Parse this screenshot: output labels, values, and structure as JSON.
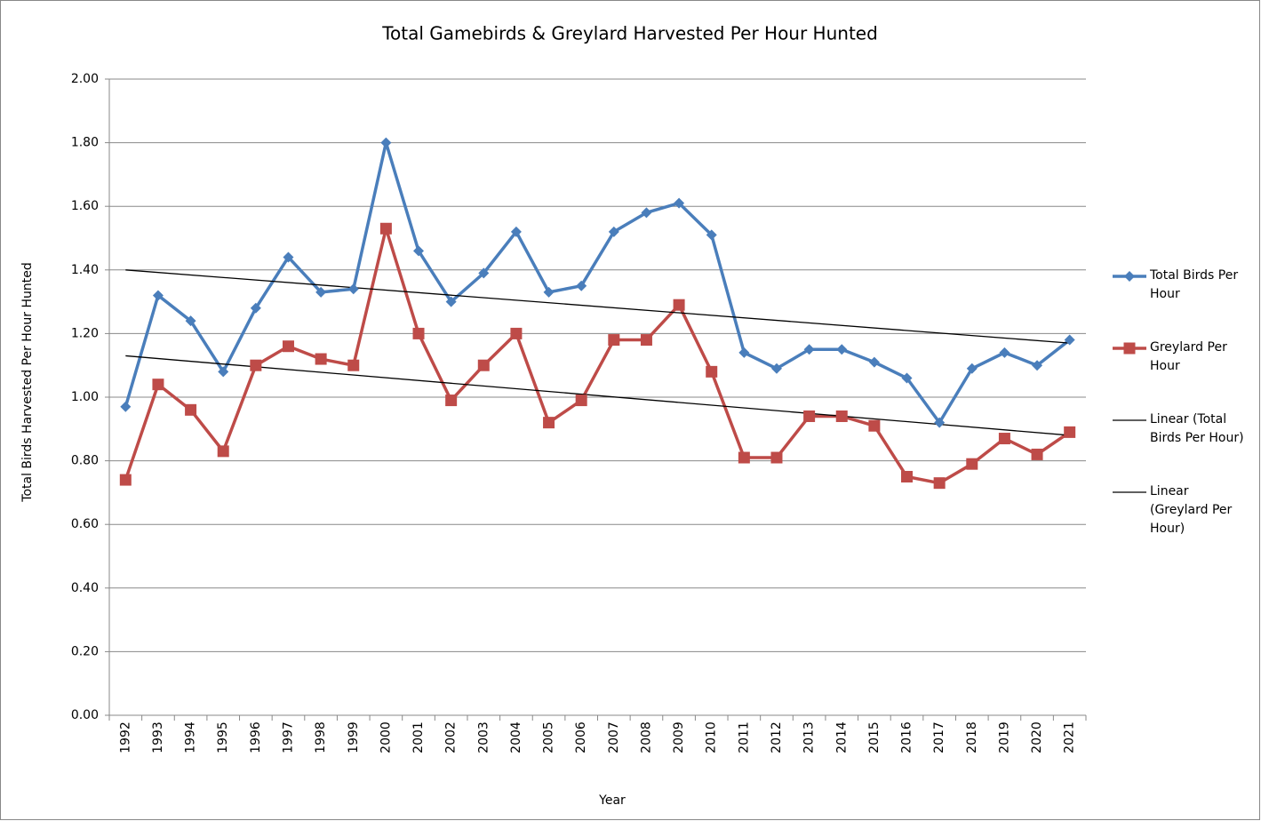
{
  "chart_data": {
    "type": "line",
    "title": "Total Gamebirds & Greylard Harvested Per Hour Hunted",
    "x_label": "Year",
    "y_label": "Total Birds Harvested Per Hour Hunted",
    "categories": [
      "1992",
      "1993",
      "1994",
      "1995",
      "1996",
      "1997",
      "1998",
      "1999",
      "2000",
      "2001",
      "2002",
      "2003",
      "2004",
      "2005",
      "2006",
      "2007",
      "2008",
      "2009",
      "2010",
      "2011",
      "2012",
      "2013",
      "2014",
      "2015",
      "2016",
      "2017",
      "2018",
      "2019",
      "2020",
      "2021"
    ],
    "series": [
      {
        "name": "Total Birds Per Hour",
        "color": "#4a7ebb",
        "marker": "diamond",
        "values": [
          0.97,
          1.32,
          1.24,
          1.08,
          1.28,
          1.44,
          1.33,
          1.34,
          1.8,
          1.46,
          1.3,
          1.39,
          1.52,
          1.33,
          1.35,
          1.52,
          1.58,
          1.61,
          1.51,
          1.14,
          1.09,
          1.15,
          1.15,
          1.11,
          1.06,
          0.92,
          1.09,
          1.14,
          1.1,
          1.18
        ]
      },
      {
        "name": "Greylard Per Hour",
        "color": "#be4b48",
        "marker": "square",
        "values": [
          0.74,
          1.04,
          0.96,
          0.83,
          1.1,
          1.16,
          1.12,
          1.1,
          1.53,
          1.2,
          0.99,
          1.1,
          1.2,
          0.92,
          0.99,
          1.18,
          1.18,
          1.29,
          1.08,
          0.81,
          0.81,
          0.94,
          0.94,
          0.91,
          0.75,
          0.73,
          0.79,
          0.87,
          0.82,
          0.89
        ]
      }
    ],
    "trendlines": [
      {
        "name": "Linear (Total Birds Per Hour)",
        "color": "#000000",
        "x": [
          "1992",
          "2021"
        ],
        "values": [
          1.4,
          1.17
        ]
      },
      {
        "name": "Linear (Greylard Per Hour)",
        "color": "#000000",
        "x": [
          "1992",
          "2021"
        ],
        "values": [
          1.13,
          0.88
        ]
      }
    ],
    "ylim": [
      0,
      2
    ],
    "yticks": [
      {
        "value": 0,
        "label": "0.00"
      },
      {
        "value": 0.2,
        "label": "0.20"
      },
      {
        "value": 0.4,
        "label": "0.40"
      },
      {
        "value": 0.6,
        "label": "0.60"
      },
      {
        "value": 0.8,
        "label": "0.80"
      },
      {
        "value": 1,
        "label": "1.00"
      },
      {
        "value": 1.2,
        "label": "1.20"
      },
      {
        "value": 1.4,
        "label": "1.40"
      },
      {
        "value": 1.6,
        "label": "1.60"
      },
      {
        "value": 1.8,
        "label": "1.80"
      },
      {
        "value": 2,
        "label": "2.00"
      }
    ],
    "grid": true
  }
}
